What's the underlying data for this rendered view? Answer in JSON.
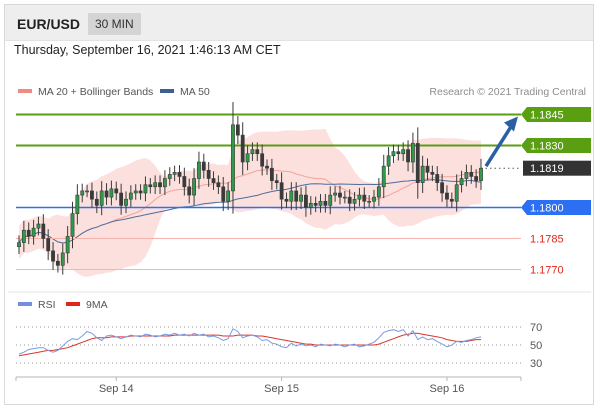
{
  "header": {
    "symbol": "EUR/USD",
    "timeframe": "30 MIN"
  },
  "datetime": "Thursday, September 16, 2021 1:46:13 AM CET",
  "legend": {
    "ma20": "MA 20 + Bollinger Bands",
    "ma50": "MA 50",
    "credit": "Research © 2021 Trading Central"
  },
  "rsi_legend": {
    "rsi": "RSI",
    "ma9": "9MA"
  },
  "colors": {
    "resistance": "#5a9e12",
    "support": "#2d6ff2",
    "levels_red": "#e0261c",
    "current": "#333333",
    "arrow": "#2b5fa3",
    "candle": "#3a3a3a",
    "bollinger": "#fbd5d2",
    "ma20": "#f2a29b",
    "ma50": "#4d6d9c",
    "rsi": "#7a9be6",
    "rsi_ma": "#d9362b"
  },
  "chart_data": [
    {
      "type": "candlestick",
      "title": "",
      "x_ticks": [
        "Sep 14",
        "Sep 15",
        "Sep 16"
      ],
      "ylim": [
        1.1762,
        1.1852
      ],
      "levels": [
        {
          "label": "1.1845",
          "value": 1.1845,
          "kind": "resistance"
        },
        {
          "label": "1.1830",
          "value": 1.183,
          "kind": "resistance"
        },
        {
          "label": "1.1819",
          "value": 1.1819,
          "kind": "current"
        },
        {
          "label": "1.1800",
          "value": 1.18,
          "kind": "support"
        },
        {
          "label": "1.1785",
          "value": 1.1785,
          "kind": "red"
        },
        {
          "label": "1.1770",
          "value": 1.177,
          "kind": "red"
        }
      ],
      "close": [
        1.1783,
        1.1789,
        1.1786,
        1.179,
        1.1792,
        1.1785,
        1.1779,
        1.1774,
        1.1772,
        1.1778,
        1.1786,
        1.1797,
        1.1806,
        1.1808,
        1.1808,
        1.1804,
        1.1801,
        1.1808,
        1.1805,
        1.1809,
        1.1807,
        1.1801,
        1.1804,
        1.1807,
        1.1808,
        1.1807,
        1.1811,
        1.181,
        1.1812,
        1.181,
        1.1814,
        1.1816,
        1.1817,
        1.1815,
        1.181,
        1.1806,
        1.1814,
        1.1822,
        1.1818,
        1.1814,
        1.1812,
        1.181,
        1.1803,
        1.1808,
        1.184,
        1.1835,
        1.1822,
        1.1826,
        1.1828,
        1.1826,
        1.182,
        1.1819,
        1.1813,
        1.1812,
        1.1804,
        1.1803,
        1.1808,
        1.1803,
        1.1806,
        1.18,
        1.1802,
        1.1801,
        1.1803,
        1.1801,
        1.1806,
        1.1807,
        1.1805,
        1.1805,
        1.1802,
        1.1804,
        1.1806,
        1.1803,
        1.1803,
        1.1805,
        1.181,
        1.182,
        1.1825,
        1.1827,
        1.1826,
        1.1828,
        1.1822,
        1.1831,
        1.1812,
        1.182,
        1.1817,
        1.1816,
        1.1812,
        1.1807,
        1.1804,
        1.1803,
        1.1811,
        1.1814,
        1.1817,
        1.1815,
        1.1813,
        1.1819
      ],
      "y_unit": "EUR/USD"
    },
    {
      "type": "line",
      "series": [
        {
          "name": "RSI",
          "values": [
            40,
            42,
            45,
            46,
            47,
            47,
            44,
            42,
            44,
            49,
            54,
            57,
            56,
            60,
            65,
            63,
            58,
            55,
            60,
            61,
            59,
            57,
            59,
            61,
            60,
            59,
            62,
            61,
            59,
            60,
            62,
            61,
            63,
            61,
            62,
            60,
            63,
            61,
            62,
            59,
            60,
            58,
            55,
            57,
            68,
            65,
            58,
            60,
            61,
            59,
            55,
            56,
            52,
            51,
            48,
            47,
            52,
            49,
            51,
            49,
            50,
            48,
            51,
            50,
            49,
            51,
            50,
            48,
            50,
            51,
            48,
            49,
            51,
            53,
            58,
            64,
            66,
            67,
            65,
            67,
            60,
            66,
            56,
            59,
            56,
            57,
            54,
            51,
            48,
            50,
            54,
            53,
            55,
            56,
            58,
            59
          ]
        },
        {
          "name": "9MA",
          "values": [
            38,
            39,
            40,
            41,
            42,
            43,
            44,
            44,
            45,
            46,
            47,
            49,
            51,
            53,
            55,
            57,
            58,
            58,
            58,
            59,
            59,
            59,
            59,
            60,
            60,
            60,
            60,
            60,
            60,
            60,
            60,
            60,
            61,
            61,
            61,
            61,
            61,
            61,
            61,
            61,
            61,
            61,
            60,
            60,
            60,
            61,
            61,
            61,
            61,
            60,
            60,
            59,
            58,
            57,
            56,
            55,
            54,
            53,
            52,
            51,
            51,
            50,
            50,
            50,
            50,
            50,
            50,
            50,
            50,
            50,
            50,
            50,
            50,
            50,
            51,
            53,
            55,
            57,
            59,
            61,
            62,
            63,
            63,
            62,
            61,
            60,
            59,
            58,
            56,
            55,
            54,
            54,
            54,
            55,
            56,
            56
          ]
        }
      ],
      "y_ticks": [
        "70",
        "50",
        "30"
      ],
      "ylim": [
        20,
        80
      ]
    }
  ]
}
